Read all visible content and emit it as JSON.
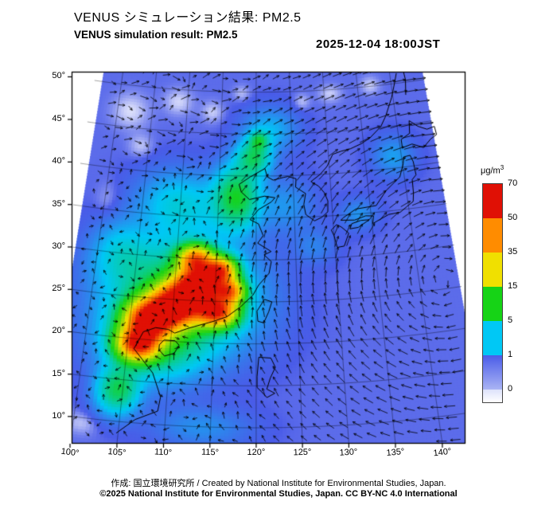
{
  "header": {
    "title_ja": "VENUS シミュレーション結果: PM2.5",
    "title_en": "VENUS simulation result: PM2.5",
    "datetime": "2025-12-04 18:00JST"
  },
  "footer": {
    "credit": "作成:  国立環境研究所 / Created by National Institute for Environmental Studies, Japan.",
    "license": "©2025 National Institute for Environmental Studies, Japan. CC BY-NC 4.0 International"
  },
  "colorbar": {
    "unit_prefix": "μg/m",
    "unit_exponent": "3",
    "tick_labels": [
      "70",
      "50",
      "35",
      "15",
      "5",
      "1",
      "0"
    ],
    "band_colors_top_to_bottom": [
      "#e01005",
      "#ff8c00",
      "#f0e000",
      "#16d316",
      "#00c8f5",
      "#4a5ce8"
    ],
    "under_range_color": "#ffffff"
  },
  "chart_data": {
    "type": "heatmap",
    "title": "VENUS simulation result: PM2.5",
    "variable": "PM2.5",
    "unit": "μg/m³",
    "timestamp": "2025-12-04 18:00JST",
    "projection": {
      "kind": "equidistant_conic",
      "cone_lat": 22,
      "central_meridian": 120
    },
    "lon_range": [
      100,
      142.7
    ],
    "lat_range": [
      8.1,
      51.2
    ],
    "grid_interval_deg": 5,
    "lat_ticks": [
      10,
      15,
      20,
      25,
      30,
      35,
      40,
      45,
      50
    ],
    "lat_tick_labels": [
      "10°",
      "15°",
      "20°",
      "25°",
      "30°",
      "35°",
      "40°",
      "45°",
      "50°"
    ],
    "lon_ticks": [
      100,
      105,
      110,
      115,
      120,
      125,
      130,
      135,
      140
    ],
    "lon_tick_labels": [
      "100°",
      "105°",
      "110°",
      "115°",
      "120°",
      "125°",
      "130°",
      "135°",
      "140°"
    ],
    "value_levels": [
      0,
      1,
      5,
      15,
      35,
      50,
      70
    ],
    "level_colors": [
      "#ffffff",
      "#4a5ce8",
      "#00c8f5",
      "#16d316",
      "#f0e000",
      "#ff8c00",
      "#e01005"
    ],
    "base_value": 0.9,
    "hotspots": [
      [
        106.3,
        19.5,
        2.2,
        1.8,
        62
      ],
      [
        107.5,
        22.5,
        2.6,
        2.1,
        72
      ],
      [
        110.5,
        24.5,
        2.8,
        2.2,
        75
      ],
      [
        113.0,
        27.0,
        2.6,
        2.0,
        72
      ],
      [
        112.5,
        30.0,
        2.0,
        1.5,
        48
      ],
      [
        115.3,
        23.8,
        2.2,
        1.6,
        60
      ],
      [
        115.6,
        28.8,
        1.8,
        1.4,
        50
      ],
      [
        116.8,
        26.3,
        1.7,
        1.4,
        45
      ],
      [
        111.0,
        25.5,
        7.5,
        6.0,
        13
      ],
      [
        108.0,
        20.0,
        5.0,
        4.0,
        10
      ],
      [
        117.5,
        37.5,
        2.8,
        3.4,
        13
      ],
      [
        119.8,
        42.3,
        2.2,
        2.0,
        10
      ],
      [
        104.5,
        13.8,
        2.2,
        2.6,
        11
      ],
      [
        103.0,
        30.0,
        3.5,
        3.5,
        4
      ],
      [
        110.0,
        36.5,
        5.0,
        3.5,
        5
      ],
      [
        124.0,
        36.5,
        3.5,
        3.0,
        2.2
      ],
      [
        133.5,
        35.0,
        2.2,
        1.7,
        2.2
      ],
      [
        139.0,
        41.5,
        2.6,
        2.2,
        2.6
      ],
      [
        122.0,
        45.5,
        3.5,
        2.4,
        3.5
      ],
      [
        120.5,
        44.3,
        1.2,
        1.0,
        8
      ],
      [
        114.0,
        10.0,
        5.0,
        2.2,
        2.0
      ],
      [
        127.5,
        31.5,
        2.5,
        2.0,
        1.5
      ],
      [
        102.0,
        47.0,
        2.5,
        2.0,
        -0.7
      ],
      [
        108.8,
        48.6,
        2.0,
        1.5,
        -0.65
      ],
      [
        113.8,
        47.6,
        1.5,
        1.2,
        -0.6
      ],
      [
        104.0,
        43.0,
        1.6,
        1.3,
        -0.55
      ],
      [
        100.6,
        36.0,
        1.6,
        2.2,
        -0.5
      ],
      [
        101.0,
        9.5,
        1.8,
        1.3,
        -0.55
      ],
      [
        131.0,
        49.6,
        1.6,
        1.0,
        -0.6
      ],
      [
        137.0,
        50.2,
        1.3,
        1.0,
        -0.6
      ],
      [
        126.8,
        48.8,
        1.1,
        0.9,
        -0.55
      ],
      [
        118.0,
        49.9,
        1.2,
        0.9,
        -0.5
      ]
    ],
    "wind": {
      "center": [
        143,
        26
      ],
      "strength": 1.5,
      "ring_r": 14,
      "ring_w": 16,
      "jet_lat": 47,
      "jet": 0.7,
      "noise_lon": 109,
      "noise": 0.5
    },
    "arrow_color": "#000000",
    "coastlines": [
      [
        [
          104.8,
          8.6
        ],
        [
          106.7,
          10.4
        ],
        [
          109.1,
          11.6
        ],
        [
          109.3,
          13.3
        ],
        [
          108.2,
          16.1
        ],
        [
          105.8,
          18.8
        ],
        [
          106.7,
          20.9
        ],
        [
          108.1,
          21.5
        ],
        [
          109.6,
          21.4
        ],
        [
          110.4,
          21.0
        ],
        [
          111.8,
          21.6
        ],
        [
          113.6,
          22.2
        ],
        [
          114.9,
          22.6
        ],
        [
          116.5,
          23.2
        ],
        [
          118.1,
          24.4
        ],
        [
          119.6,
          25.8
        ],
        [
          120.3,
          27.0
        ],
        [
          121.6,
          28.4
        ],
        [
          121.9,
          29.8
        ],
        [
          121.0,
          30.6
        ],
        [
          121.9,
          31.0
        ],
        [
          120.2,
          32.0
        ],
        [
          120.9,
          32.9
        ],
        [
          120.3,
          34.3
        ],
        [
          119.2,
          34.8
        ],
        [
          120.3,
          36.0
        ],
        [
          122.0,
          36.9
        ],
        [
          122.5,
          37.4
        ],
        [
          121.1,
          37.6
        ],
        [
          119.1,
          37.2
        ],
        [
          118.0,
          38.1
        ],
        [
          117.7,
          39.0
        ],
        [
          119.2,
          39.9
        ],
        [
          121.2,
          40.9
        ],
        [
          121.5,
          39.9
        ],
        [
          122.3,
          39.5
        ],
        [
          123.7,
          39.8
        ],
        [
          124.3,
          39.9
        ],
        [
          125.4,
          39.6
        ],
        [
          125.3,
          38.6
        ],
        [
          126.6,
          37.8
        ],
        [
          126.3,
          36.5
        ],
        [
          126.5,
          35.3
        ],
        [
          127.6,
          34.5
        ],
        [
          128.6,
          34.9
        ],
        [
          129.4,
          35.5
        ],
        [
          129.5,
          36.8
        ],
        [
          129.1,
          37.8
        ],
        [
          128.4,
          38.6
        ],
        [
          127.4,
          39.2
        ],
        [
          128.7,
          40.0
        ],
        [
          129.7,
          40.9
        ],
        [
          130.6,
          42.3
        ],
        [
          131.8,
          42.6
        ],
        [
          133.1,
          42.8
        ],
        [
          134.7,
          43.3
        ],
        [
          136.0,
          43.9
        ],
        [
          137.7,
          45.1
        ],
        [
          138.6,
          46.3
        ],
        [
          139.8,
          48.4
        ],
        [
          140.5,
          50.0
        ],
        [
          141.0,
          51.2
        ]
      ],
      [
        [
          108.7,
          19.5
        ],
        [
          109.2,
          20.1
        ],
        [
          110.5,
          20.1
        ],
        [
          111.0,
          19.6
        ],
        [
          110.5,
          18.6
        ],
        [
          109.4,
          18.2
        ],
        [
          108.7,
          18.9
        ],
        [
          108.7,
          19.5
        ]
      ],
      [
        [
          121.0,
          25.3
        ],
        [
          121.9,
          25.0
        ],
        [
          121.5,
          23.8
        ],
        [
          120.9,
          22.5
        ],
        [
          120.2,
          22.7
        ],
        [
          120.1,
          23.9
        ],
        [
          121.0,
          25.3
        ]
      ],
      [
        [
          130.0,
          32.6
        ],
        [
          130.3,
          31.2
        ],
        [
          131.2,
          31.3
        ],
        [
          131.9,
          32.8
        ],
        [
          131.0,
          33.6
        ],
        [
          130.4,
          33.9
        ],
        [
          129.7,
          33.3
        ],
        [
          130.0,
          32.6
        ]
      ],
      [
        [
          132.1,
          33.3
        ],
        [
          133.2,
          33.4
        ],
        [
          134.7,
          34.2
        ],
        [
          133.6,
          34.2
        ],
        [
          132.4,
          33.9
        ],
        [
          132.1,
          33.3
        ]
      ],
      [
        [
          131.0,
          34.4
        ],
        [
          132.8,
          34.3
        ],
        [
          134.3,
          34.7
        ],
        [
          135.3,
          34.6
        ],
        [
          135.1,
          33.7
        ],
        [
          136.3,
          34.2
        ],
        [
          137.3,
          34.6
        ],
        [
          138.8,
          34.7
        ],
        [
          139.8,
          35.3
        ],
        [
          140.7,
          35.8
        ],
        [
          140.9,
          36.8
        ],
        [
          141.0,
          38.4
        ],
        [
          141.6,
          38.9
        ],
        [
          141.5,
          40.5
        ],
        [
          141.2,
          41.3
        ],
        [
          140.3,
          41.2
        ],
        [
          140.1,
          40.4
        ],
        [
          139.4,
          38.9
        ],
        [
          137.4,
          37.5
        ],
        [
          137.0,
          37.1
        ],
        [
          135.8,
          35.8
        ],
        [
          133.1,
          35.6
        ],
        [
          131.4,
          34.7
        ],
        [
          131.0,
          34.4
        ]
      ],
      [
        [
          140.3,
          42.3
        ],
        [
          141.7,
          42.6
        ],
        [
          142.5,
          42.3
        ],
        [
          143.2,
          42.0
        ],
        [
          144.4,
          42.9
        ],
        [
          145.3,
          43.3
        ],
        [
          145.2,
          44.3
        ],
        [
          144.1,
          44.1
        ],
        [
          142.9,
          44.6
        ],
        [
          141.8,
          45.4
        ],
        [
          141.6,
          43.9
        ],
        [
          140.3,
          43.3
        ],
        [
          140.3,
          42.3
        ]
      ],
      [
        [
          120.1,
          16.1
        ],
        [
          120.3,
          18.4
        ],
        [
          121.7,
          18.3
        ],
        [
          122.2,
          17.2
        ],
        [
          121.6,
          15.9
        ],
        [
          121.2,
          14.6
        ],
        [
          122.1,
          14.1
        ],
        [
          121.2,
          13.6
        ],
        [
          120.6,
          14.3
        ],
        [
          120.1,
          14.8
        ],
        [
          120.1,
          16.1
        ]
      ],
      [
        [
          141.9,
          48.5
        ],
        [
          142.2,
          50.3
        ],
        [
          142.1,
          51.2
        ]
      ]
    ]
  }
}
